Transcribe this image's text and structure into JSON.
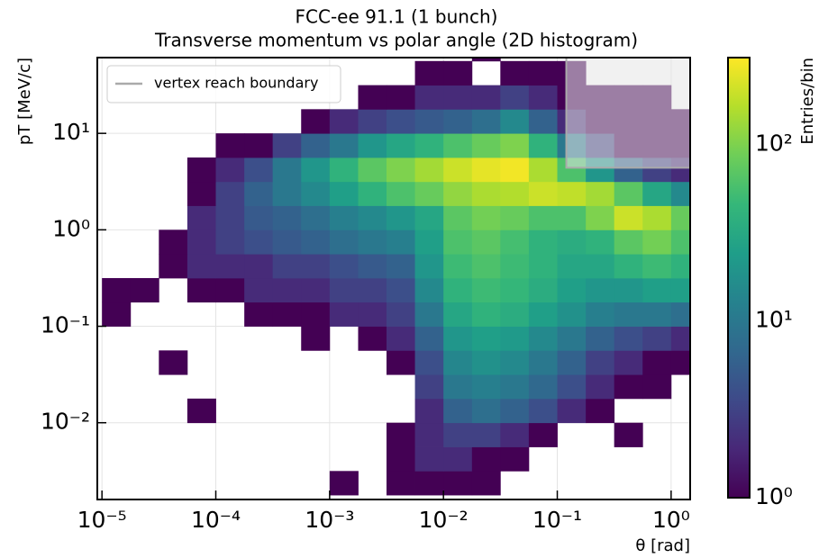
{
  "chart_data": {
    "type": "hist2d",
    "title": "FCC-ee 91.1 (1 bunch)",
    "subtitle": "Transverse momentum vs polar angle (2D histogram)",
    "x_label": "θ [rad]",
    "y_label": "pT [MeV/c]",
    "colorbar_label": "Entries/bin",
    "colormap": "viridis",
    "log_x": true,
    "log_y": true,
    "log_color": true,
    "grid": true,
    "legend_position": "upper left",
    "xlim": [
      9.1e-06,
      1.47
    ],
    "ylim": [
      0.0016,
      61
    ],
    "clim": [
      1,
      310
    ],
    "xticks": [
      {
        "value": 1e-05,
        "label": "10⁻⁵"
      },
      {
        "value": 0.0001,
        "label": "10⁻⁴"
      },
      {
        "value": 0.001,
        "label": "10⁻³"
      },
      {
        "value": 0.01,
        "label": "10⁻²"
      },
      {
        "value": 0.1,
        "label": "10⁻¹"
      },
      {
        "value": 1,
        "label": "10⁰"
      }
    ],
    "yticks": [
      {
        "value": 0.01,
        "label": "10⁻²"
      },
      {
        "value": 0.1,
        "label": "10⁻¹"
      },
      {
        "value": 1,
        "label": "10⁰"
      },
      {
        "value": 10,
        "label": "10¹"
      }
    ],
    "cticks": [
      {
        "value": 1,
        "label": "10⁰"
      },
      {
        "value": 10,
        "label": "10¹"
      },
      {
        "value": 100,
        "label": "10²"
      }
    ],
    "xbins": [
      1e-05,
      1.78e-05,
      3.16e-05,
      5.62e-05,
      0.0001,
      0.000178,
      0.000316,
      0.000562,
      0.001,
      0.00178,
      0.00316,
      0.00562,
      0.01,
      0.0178,
      0.0316,
      0.0562,
      0.1,
      0.178,
      0.316,
      0.562,
      1,
      1.78
    ],
    "ybins": [
      0.00178,
      0.00316,
      0.00562,
      0.01,
      0.0178,
      0.0316,
      0.0562,
      0.1,
      0.178,
      0.316,
      0.562,
      1,
      1.78,
      3.16,
      5.62,
      10,
      17.8,
      31.6,
      56.2,
      100
    ],
    "counts": [
      [
        null,
        null,
        null,
        null,
        null,
        null,
        null,
        null,
        1,
        null,
        1,
        1,
        1,
        1,
        null,
        null,
        null,
        null,
        null,
        null,
        null
      ],
      [
        null,
        null,
        null,
        null,
        null,
        null,
        null,
        null,
        null,
        null,
        1,
        2,
        2,
        1,
        1,
        null,
        null,
        null,
        null,
        null,
        null
      ],
      [
        null,
        null,
        null,
        null,
        null,
        null,
        null,
        null,
        null,
        null,
        1,
        2,
        3,
        3,
        2,
        1,
        null,
        null,
        1,
        null,
        null
      ],
      [
        null,
        null,
        null,
        1,
        null,
        null,
        null,
        null,
        null,
        null,
        null,
        2,
        6,
        8,
        6,
        4,
        2,
        1,
        null,
        null,
        null
      ],
      [
        null,
        null,
        null,
        null,
        null,
        null,
        null,
        null,
        null,
        null,
        null,
        3,
        10,
        12,
        10,
        7,
        4,
        2,
        1,
        1,
        null
      ],
      [
        null,
        null,
        1,
        null,
        null,
        null,
        null,
        null,
        null,
        null,
        1,
        4,
        14,
        18,
        15,
        10,
        6,
        3,
        2,
        1,
        1
      ],
      [
        null,
        null,
        null,
        null,
        null,
        null,
        null,
        1,
        null,
        1,
        2,
        6,
        20,
        25,
        22,
        15,
        10,
        6,
        4,
        3,
        2
      ],
      [
        1,
        null,
        null,
        null,
        null,
        1,
        1,
        1,
        2,
        2,
        3,
        10,
        30,
        40,
        35,
        25,
        18,
        12,
        10,
        10,
        8
      ],
      [
        1,
        1,
        null,
        1,
        1,
        2,
        2,
        2,
        3,
        3,
        4,
        15,
        40,
        50,
        45,
        35,
        25,
        20,
        20,
        25,
        25
      ],
      [
        null,
        null,
        1,
        2,
        2,
        2,
        3,
        3,
        4,
        5,
        6,
        20,
        50,
        60,
        50,
        40,
        30,
        30,
        40,
        50,
        40
      ],
      [
        null,
        null,
        1,
        2,
        3,
        4,
        5,
        6,
        8,
        10,
        12,
        25,
        60,
        70,
        55,
        40,
        35,
        40,
        70,
        90,
        60
      ],
      [
        null,
        null,
        null,
        2,
        3,
        5,
        6,
        8,
        12,
        15,
        20,
        30,
        70,
        90,
        80,
        60,
        60,
        100,
        200,
        150,
        80
      ],
      [
        null,
        null,
        null,
        1,
        3,
        6,
        10,
        15,
        25,
        40,
        60,
        80,
        120,
        150,
        160,
        200,
        180,
        140,
        70,
        30,
        15
      ],
      [
        null,
        null,
        null,
        1,
        2,
        4,
        10,
        20,
        40,
        70,
        100,
        140,
        200,
        250,
        280,
        150,
        60,
        20,
        6,
        3,
        2
      ],
      [
        null,
        null,
        null,
        null,
        1,
        1,
        3,
        6,
        10,
        20,
        30,
        40,
        60,
        80,
        100,
        40,
        10,
        3,
        1,
        1,
        1
      ],
      [
        null,
        null,
        null,
        null,
        null,
        null,
        null,
        1,
        2,
        3,
        4,
        5,
        6,
        8,
        15,
        6,
        2,
        1,
        1,
        1,
        1
      ],
      [
        null,
        null,
        null,
        null,
        null,
        null,
        null,
        null,
        null,
        1,
        1,
        2,
        2,
        2,
        3,
        2,
        1,
        1,
        1,
        1,
        null
      ],
      [
        null,
        null,
        null,
        null,
        null,
        null,
        null,
        null,
        null,
        null,
        null,
        1,
        1,
        null,
        1,
        1,
        1,
        null,
        null,
        null,
        null
      ],
      [
        null,
        null,
        null,
        null,
        null,
        null,
        null,
        null,
        null,
        null,
        null,
        null,
        null,
        1,
        null,
        null,
        null,
        null,
        null,
        null,
        null
      ]
    ],
    "boundary": {
      "name": "vertex reach boundary",
      "color": "#aaaaaa",
      "x": [
        0.12,
        0.12,
        1.47
      ],
      "y": [
        61,
        4.4,
        4.4
      ]
    }
  }
}
